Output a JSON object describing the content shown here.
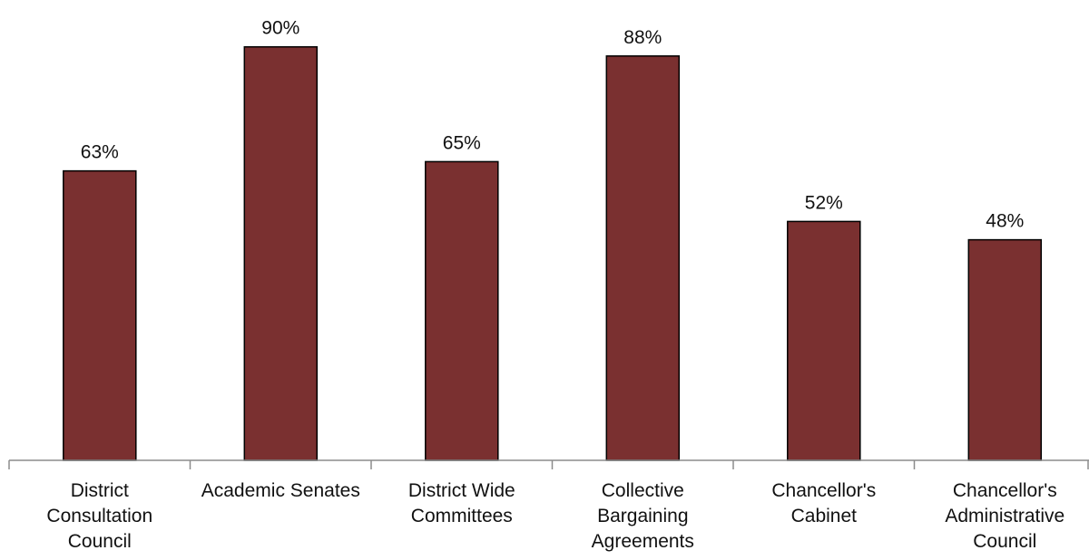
{
  "chart_data": {
    "type": "bar",
    "title": "",
    "xlabel": "",
    "ylabel": "",
    "categories": [
      [
        "District",
        "Consultation",
        "Council"
      ],
      [
        "Academic Senates"
      ],
      [
        "District Wide",
        "Committees"
      ],
      [
        "Collective",
        "Bargaining",
        "Agreements"
      ],
      [
        "Chancellor's",
        "Cabinet"
      ],
      [
        "Chancellor's",
        "Administrative",
        "Council"
      ]
    ],
    "values": [
      63,
      90,
      65,
      88,
      52,
      48
    ],
    "value_labels": [
      "63%",
      "90%",
      "65%",
      "88%",
      "52%",
      "48%"
    ],
    "unit": "%",
    "ylim": [
      0,
      100
    ],
    "grid": false,
    "legend": "none",
    "colors": {
      "bar_fill": "#7a3030",
      "bar_stroke": "#000000",
      "axis": "#8c8c8c"
    }
  }
}
